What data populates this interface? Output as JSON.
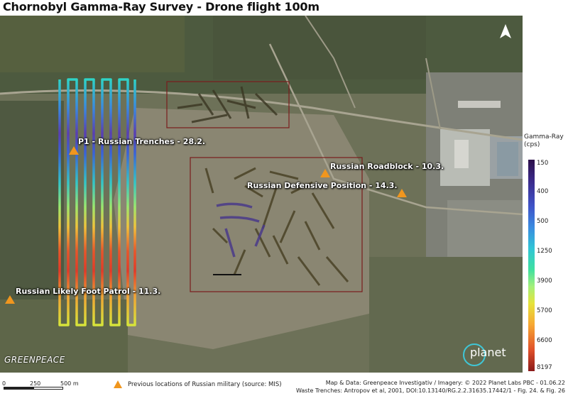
{
  "title": "Chornobyl Gamma-Ray Survey - Drone flight 100m",
  "labels": {
    "p1": "P1  - Russian Trenches - 28.2.",
    "roadblock": "Russian Roadblock - 10.3.",
    "defensive": "Russian Defensive Position - 14.3.",
    "patrol": "Russian Likely Foot Patrol - 11.3."
  },
  "brand": {
    "greenpeace": "GREENPEACE",
    "planet": "planet"
  },
  "legend": {
    "title_line1": "Gamma-Ray",
    "title_line2": "(cps)",
    "ticks": [
      "150",
      "400",
      "500",
      "1250",
      "3900",
      "5700",
      "6600",
      "8197"
    ]
  },
  "scale": {
    "l0": "0",
    "l1": "250",
    "l2": "500 m"
  },
  "footer": {
    "marker_legend": "Previous locations of Russian military (source: MIS)",
    "credit1": "Map & Data: Greenpeace Investigativ / Imagery: © 2022 Planet Labs PBC - 01.06.22",
    "credit2": "Waste Trenches: Antropov et al, 2001,  DOI:10.13140/RG.2.2.31635.17442/1 - Fig. 24. & Fig. 26"
  },
  "colors": {
    "marker": "#f0961e",
    "frame": "#7a1c1c"
  }
}
